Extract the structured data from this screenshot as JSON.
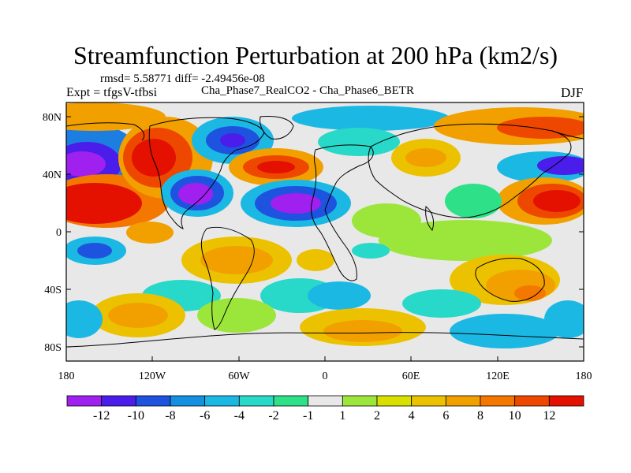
{
  "title": "Streamfunction Perturbation at 200 hPa (km2/s)",
  "rmsd_line": "rmsd= 5.58771 diff= -2.49456e-08",
  "expt_label": "Expt = tfgsV-tfbsi",
  "diff_label": "Cha_Phase7_RealCO2 - Cha_Phase6_BETR",
  "season_label": "DJF",
  "y_ticks": [
    "80N",
    "40N",
    "0",
    "40S",
    "80S"
  ],
  "x_ticks": [
    "180",
    "120W",
    "60W",
    "0",
    "60E",
    "120E",
    "180"
  ],
  "colorbar": {
    "colors": [
      "#a020f0",
      "#4a1dea",
      "#1e53e0",
      "#1490e0",
      "#1cb8e4",
      "#28d8c8",
      "#2ee088",
      "#e8e8e8",
      "#9ce63c",
      "#d8e000",
      "#ecc200",
      "#f2a000",
      "#f47800",
      "#ee4800",
      "#e41000"
    ],
    "labels": [
      "-12",
      "-10",
      "-8",
      "-6",
      "-4",
      "-2",
      "-1",
      "1",
      "2",
      "4",
      "6",
      "8",
      "10",
      "12"
    ]
  },
  "field_colors": {
    "neg_extreme": "#7a1fe8",
    "neg_strong": "#3a3ae6",
    "neg_mid": "#1c7ee0",
    "neg_weak": "#22c4dc",
    "neg_faint": "#3ae0a8",
    "neutral": "#e8e8e8",
    "pos_faint": "#a8e43a",
    "pos_weak": "#e0d800",
    "pos_mid": "#f0b000",
    "pos_strong": "#f47200",
    "pos_extreme": "#e41a0c"
  }
}
